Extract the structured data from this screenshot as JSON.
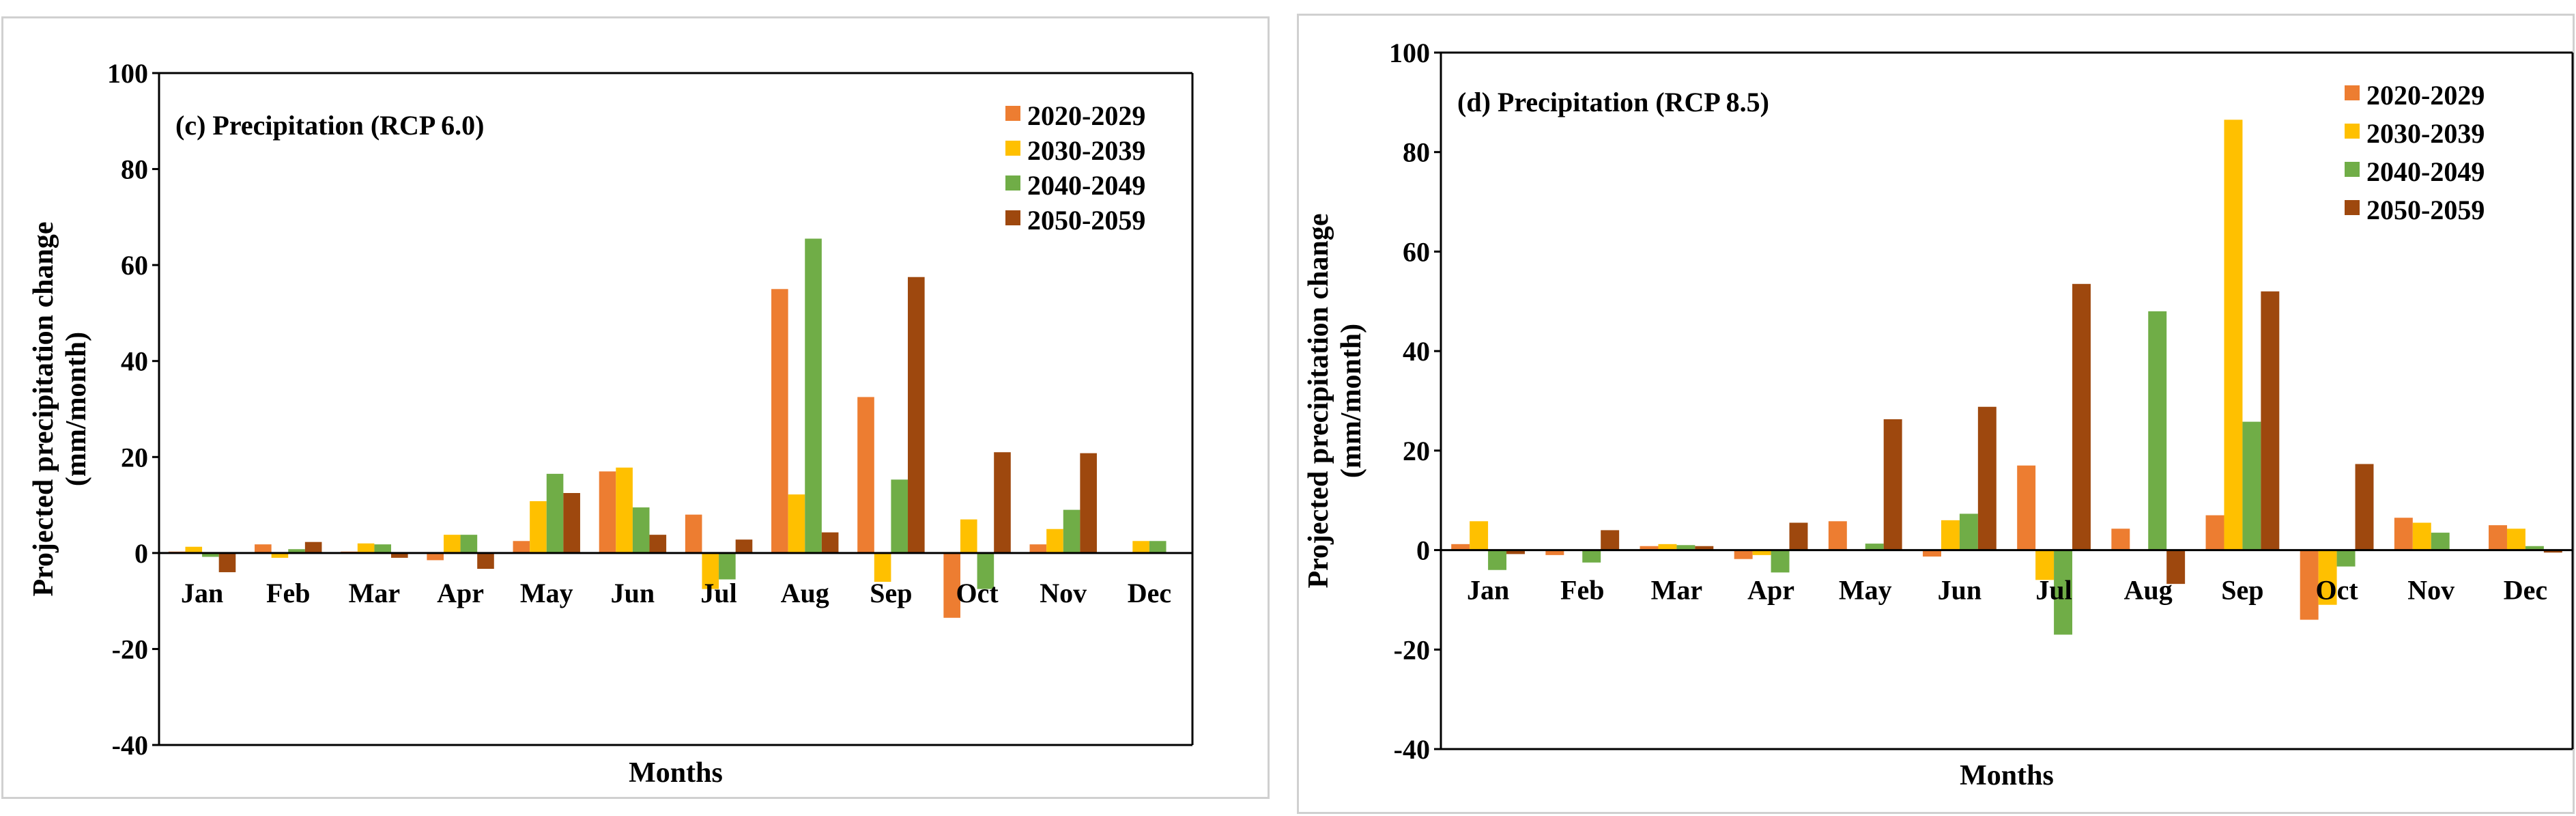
{
  "chart_data": [
    {
      "type": "bar",
      "title": "(c) Precipitation (RCP 6.0)",
      "xlabel": "Months",
      "ylabel_line1": "Projected precipitation change",
      "ylabel_line2": "(mm/month)",
      "ylim": [
        -40,
        100
      ],
      "yticks": [
        "100",
        "80",
        "60",
        "40",
        "20",
        "0",
        "-20",
        "-40"
      ],
      "ytick_values": [
        100,
        80,
        60,
        40,
        20,
        0,
        -20,
        -40
      ],
      "categories": [
        "Jan",
        "Feb",
        "Mar",
        "Apr",
        "May",
        "Jun",
        "Jul",
        "Aug",
        "Sep",
        "Oct",
        "Nov",
        "Dec"
      ],
      "series": [
        {
          "name": "2020-2029",
          "color": "#ED7D31",
          "values": [
            0.3,
            1.8,
            0.3,
            -1.5,
            2.5,
            17,
            8,
            55,
            32.5,
            -13.5,
            1.8,
            0
          ]
        },
        {
          "name": "2030-2039",
          "color": "#FFC000",
          "values": [
            1.3,
            -1,
            2,
            3.8,
            10.8,
            17.8,
            -7.5,
            12.2,
            -6,
            7,
            5,
            2.5
          ]
        },
        {
          "name": "2040-2049",
          "color": "#70AD47",
          "values": [
            -0.8,
            0.8,
            1.8,
            3.8,
            16.5,
            9.5,
            -5.5,
            65.5,
            15.3,
            -7.5,
            9,
            2.5
          ]
        },
        {
          "name": "2050-2059",
          "color": "#9E480E",
          "values": [
            -4,
            2.3,
            -1,
            -3.3,
            12.5,
            3.8,
            2.8,
            4.3,
            57.5,
            21,
            20.8,
            0
          ]
        }
      ]
    },
    {
      "type": "bar",
      "title": "(d) Precipitation (RCP 8.5)",
      "xlabel": "Months",
      "ylabel_line1": "Projected precipitation change",
      "ylabel_line2": "(mm/month)",
      "ylim": [
        -40,
        100
      ],
      "yticks": [
        "100",
        "80",
        "60",
        "40",
        "20",
        "0",
        "-20",
        "-40"
      ],
      "ytick_values": [
        100,
        80,
        60,
        40,
        20,
        0,
        -20,
        -40
      ],
      "categories": [
        "Jan",
        "Feb",
        "Mar",
        "Apr",
        "May",
        "Jun",
        "Jul",
        "Aug",
        "Sep",
        "Oct",
        "Nov",
        "Dec"
      ],
      "series": [
        {
          "name": "2020-2029",
          "color": "#ED7D31",
          "values": [
            1.2,
            -1,
            0.8,
            -1.8,
            5.8,
            -1.3,
            17,
            4.3,
            7,
            -14,
            6.5,
            5
          ]
        },
        {
          "name": "2030-2039",
          "color": "#FFC000",
          "values": [
            5.8,
            0,
            1.2,
            -1,
            0,
            6,
            -6,
            0,
            86.5,
            -11,
            5.5,
            4.3
          ]
        },
        {
          "name": "2040-2049",
          "color": "#70AD47",
          "values": [
            -4,
            -2.5,
            1,
            -4.5,
            1.3,
            7.3,
            -17,
            48,
            25.8,
            -3.3,
            3.5,
            0.8
          ]
        },
        {
          "name": "2050-2059",
          "color": "#9E480E",
          "values": [
            -0.8,
            4,
            0.8,
            5.5,
            26.3,
            28.8,
            53.5,
            -6.8,
            52,
            17.3,
            0,
            -0.5
          ]
        }
      ]
    }
  ]
}
